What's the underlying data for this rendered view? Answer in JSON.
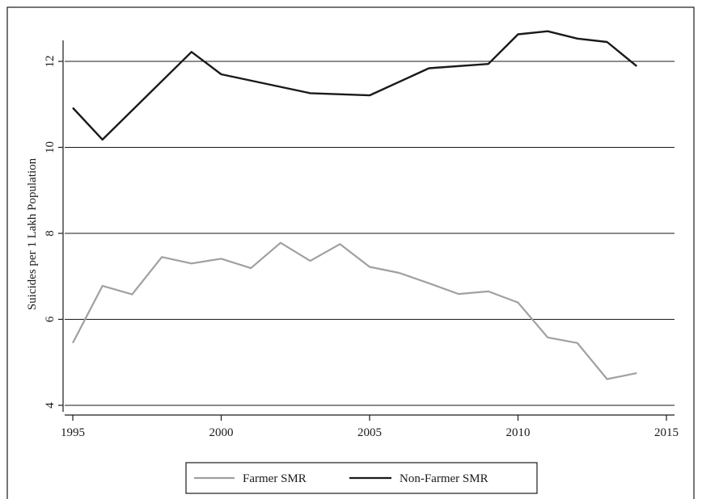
{
  "chart_data": {
    "type": "line",
    "title": "",
    "xlabel": "",
    "ylabel": "Suicides per 1 Lakh Population",
    "xlim": [
      1995,
      2015
    ],
    "ylim": [
      4,
      12.5
    ],
    "x_ticks": [
      1995,
      2000,
      2005,
      2010,
      2015
    ],
    "y_ticks": [
      4,
      6,
      8,
      10,
      12
    ],
    "grid": "horizontal",
    "legend_position": "bottom",
    "series": [
      {
        "name": "Farmer SMR",
        "color": "#a0a0a0",
        "points": [
          [
            1995,
            5.45
          ],
          [
            1996,
            6.78
          ],
          [
            1997,
            6.58
          ],
          [
            1998,
            7.45
          ],
          [
            1999,
            7.3
          ],
          [
            2000,
            7.41
          ],
          [
            2001,
            7.19
          ],
          [
            2002,
            7.78
          ],
          [
            2003,
            7.36
          ],
          [
            2004,
            7.75
          ],
          [
            2005,
            7.22
          ],
          [
            2006,
            7.08
          ],
          [
            2007,
            6.84
          ],
          [
            2008,
            6.59
          ],
          [
            2009,
            6.65
          ],
          [
            2010,
            6.39
          ],
          [
            2011,
            5.58
          ],
          [
            2012,
            5.45
          ],
          [
            2013,
            4.61
          ],
          [
            2014,
            4.75
          ]
        ]
      },
      {
        "name": "Non-Farmer SMR",
        "color": "#1a1a1a",
        "points": [
          [
            1995,
            10.92
          ],
          [
            1996,
            10.18
          ],
          [
            1999,
            12.22
          ],
          [
            2000,
            11.7
          ],
          [
            2003,
            11.26
          ],
          [
            2005,
            11.21
          ],
          [
            2007,
            11.84
          ],
          [
            2009,
            11.94
          ],
          [
            2010,
            12.63
          ],
          [
            2011,
            12.7
          ],
          [
            2012,
            12.53
          ],
          [
            2013,
            12.45
          ],
          [
            2014,
            11.89
          ]
        ]
      }
    ]
  }
}
